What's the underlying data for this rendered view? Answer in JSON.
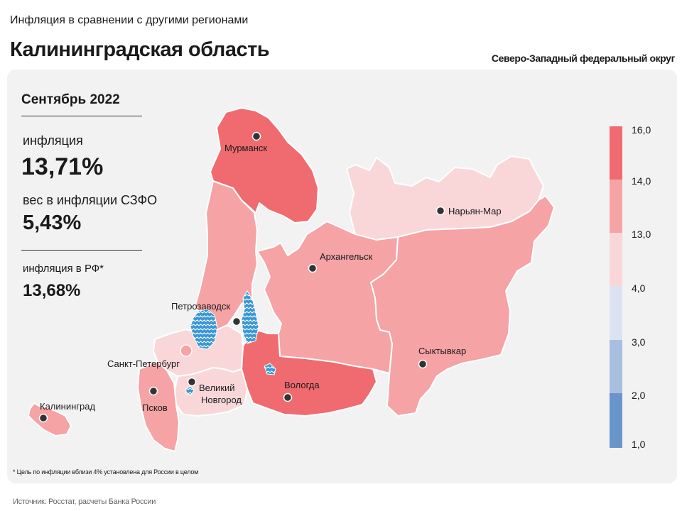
{
  "header": {
    "subtitle": "Инфляция в сравнении с другими регионами",
    "title": "Калининградская область",
    "district": "Северо-Западный федеральный округ"
  },
  "stats": {
    "period": "Сентябрь 2022",
    "inflation_label": "инфляция",
    "inflation_value": "13,71%",
    "weight_label": "вес в инфляции  СЗФО",
    "weight_value": "5,43%",
    "rf_label": "инфляция  в РФ*",
    "rf_value": "13,68%"
  },
  "cities": {
    "murmansk": "Мурманск",
    "naryan_mar": "Нарьян-Мар",
    "arkhangelsk": "Архангельск",
    "petrozavodsk": "Петрозаводск",
    "spb": "Санкт-Петербург",
    "v_novgorod_1": "Великий",
    "v_novgorod_2": "Новгород",
    "vologda": "Вологда",
    "syktyvkar": "Сыктывкар",
    "pskov": "Псков",
    "kaliningrad": "Калининград"
  },
  "legend": {
    "ticks": [
      "16,0",
      "14,0",
      "13,0",
      "4,0",
      "3,0",
      "2,0",
      "1,0"
    ],
    "colors": [
      "#f06b6f",
      "#f5a3a5",
      "#f9d7d9",
      "#dbe3f3",
      "#a7bedf",
      "#6a95cb"
    ]
  },
  "region_colors": {
    "murmansk": "#f06b6f",
    "karelia": "#f5a3a5",
    "nenets": "#f9d7d9",
    "arkhangelsk": "#f5a3a5",
    "komi": "#f5a3a5",
    "vologda": "#f06b6f",
    "leningrad": "#f9d7d9",
    "spb": "#f5a3a5",
    "novgorod": "#f9d7d9",
    "pskov": "#f5a3a5",
    "kaliningrad": "#f5a3a5",
    "water": "#3a97d4"
  },
  "footnote": "* Цель по инфляции вблизи 4% установлена для России в целом",
  "source": "Источник: Росстат, расчеты Банка России"
}
